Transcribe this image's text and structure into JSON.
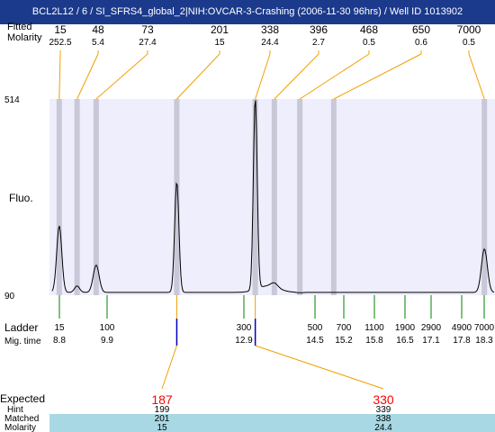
{
  "title": "BCL2L12 / 6 / SI_SFRS4_global_2|NIH:OVCAR-3-Crashing (2006-11-30 96hrs) / Well ID 1013902",
  "colors": {
    "title_bg": "#1c3a8c",
    "plot_bg": "#eeeefc",
    "band": "#c8c8d8",
    "orange": "#f0a000",
    "green": "#008000",
    "blue": "#0000c0",
    "red": "#ff0000",
    "table_bg": "#a8d8e4"
  },
  "header": {
    "label_fitted": "Fitted",
    "label_molarity": "Molarity",
    "fitted": [
      "15",
      "48",
      "73",
      "201",
      "338",
      "396",
      "468",
      "650",
      "7000"
    ],
    "molarity": [
      "252.5",
      "5.4",
      "27.4",
      "15",
      "24.4",
      "2.7",
      "0.5",
      "0.6",
      "0.5"
    ]
  },
  "axis": {
    "label": "Fluo.",
    "top": "514",
    "bottom": "90"
  },
  "ladder": {
    "label": "Ladder",
    "mig_label": "Mig. time",
    "sizes": [
      "15",
      "100",
      "300",
      "500",
      "700",
      "1100",
      "1900",
      "2900",
      "4900",
      "7000"
    ],
    "times": [
      "8.8",
      "9.9",
      "12.9",
      "14.5",
      "15.2",
      "15.8",
      "16.5",
      "17.1",
      "17.8",
      "18.3"
    ]
  },
  "table": {
    "expected_label": "Expected",
    "hint_label": "Hint",
    "matched_label": "Matched",
    "molarity_label": "Molarity",
    "expected": [
      "187",
      "330"
    ],
    "hint": [
      "199",
      "339"
    ],
    "matched": [
      "201",
      "338"
    ],
    "molarity": [
      "15",
      "24.4"
    ]
  },
  "chart_data": {
    "type": "line",
    "title": "BCL2L12 / 6 / SI_SFRS4_global_2|NIH:OVCAR-3-Crashing (2006-11-30 96hrs) / Well ID 1013902",
    "ylabel": "Fluo.",
    "xlabel": "Mig. time",
    "ylim": [
      90,
      514
    ],
    "xlim": [
      8.1,
      18.6
    ],
    "ladder_markers": [
      {
        "size": 15,
        "time": 8.8
      },
      {
        "size": 100,
        "time": 9.9
      },
      {
        "size": 300,
        "time": 12.9
      },
      {
        "size": 500,
        "time": 14.5
      },
      {
        "size": 700,
        "time": 15.2
      },
      {
        "size": 1100,
        "time": 15.8
      },
      {
        "size": 1900,
        "time": 16.5
      },
      {
        "size": 2900,
        "time": 17.1
      },
      {
        "size": 4900,
        "time": 17.8
      },
      {
        "size": 7000,
        "time": 18.3
      }
    ],
    "peaks": [
      {
        "time": 8.33,
        "fitted": 15,
        "molarity": 252.5,
        "height": 240
      },
      {
        "time": 8.75,
        "fitted": 48,
        "molarity": 5.4,
        "height": 110
      },
      {
        "time": 9.2,
        "fitted": 73,
        "molarity": 27.4,
        "height": 155
      },
      {
        "time": 11.1,
        "fitted": 201,
        "molarity": 15,
        "height": 335
      },
      {
        "time": 12.95,
        "fitted": 338,
        "molarity": 24.4,
        "height": 510
      },
      {
        "time": 13.4,
        "fitted": 396,
        "molarity": 2.7,
        "height": 105
      },
      {
        "time": 14.0,
        "fitted": 468,
        "molarity": 0.5,
        "height": 95
      },
      {
        "time": 14.8,
        "fitted": 650,
        "molarity": 0.6,
        "height": 96
      },
      {
        "time": 18.35,
        "fitted": 7000,
        "molarity": 0.5,
        "height": 190
      }
    ],
    "expected": [
      {
        "size": 187,
        "time": 11.1
      },
      {
        "size": 330,
        "time": 12.95
      }
    ],
    "grid": false
  }
}
